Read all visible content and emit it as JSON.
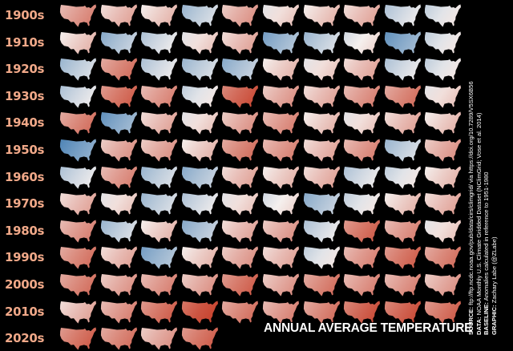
{
  "title": "ANNUAL AVERAGE TEMPERATURE",
  "colors": {
    "background": "#000000",
    "label": "#f0a888",
    "cold": "#3b78b0",
    "neutral": "#f5f0ee",
    "warm": "#c8442f"
  },
  "decades": [
    "1900s",
    "1910s",
    "1920s",
    "1930s",
    "1940s",
    "1950s",
    "1960s",
    "1970s",
    "1980s",
    "1990s",
    "2000s",
    "2010s",
    "2020s"
  ],
  "anomaly_scale": [
    -1,
    1
  ],
  "anomalies": [
    [
      0.5,
      0.3,
      0.2,
      -0.3,
      0.4,
      0.1,
      0.2,
      0.3,
      -0.2,
      -0.1
    ],
    [
      0.2,
      -0.4,
      -0.2,
      0.1,
      0.3,
      -0.5,
      -0.3,
      0.0,
      -0.6,
      -0.1
    ],
    [
      -0.3,
      0.6,
      -0.2,
      -0.3,
      -0.4,
      0.2,
      0.1,
      0.3,
      -0.2,
      -0.1
    ],
    [
      -0.2,
      0.7,
      0.5,
      -0.1,
      0.8,
      0.4,
      0.3,
      0.5,
      0.6,
      0.1
    ],
    [
      0.6,
      -0.6,
      0.3,
      0.1,
      0.4,
      0.5,
      0.2,
      0.1,
      0.3,
      0.2
    ],
    [
      -0.7,
      0.4,
      0.4,
      0.2,
      0.6,
      0.5,
      0.3,
      0.5,
      -0.3,
      0.4
    ],
    [
      -0.2,
      0.5,
      -0.3,
      -0.4,
      0.3,
      0.2,
      0.3,
      -0.2,
      -0.1,
      0.2
    ],
    [
      0.3,
      0.1,
      -0.3,
      -0.2,
      0.1,
      0.0,
      -0.4,
      -0.1,
      0.2,
      0.3
    ],
    [
      0.5,
      -0.3,
      0.2,
      -0.4,
      0.3,
      0.4,
      -0.2,
      0.7,
      0.5,
      0.1
    ],
    [
      0.6,
      0.3,
      -0.5,
      0.2,
      0.4,
      0.3,
      -0.1,
      0.5,
      0.7,
      0.6
    ],
    [
      0.6,
      0.4,
      0.5,
      0.4,
      0.7,
      0.4,
      0.6,
      0.5,
      0.5,
      0.4
    ],
    [
      0.3,
      0.5,
      0.7,
      0.9,
      0.6,
      0.5,
      0.6,
      0.8,
      0.8,
      0.7
    ],
    [
      0.7,
      0.6,
      0.4,
      0.7
    ]
  ],
  "credits": [
    {
      "key": "SOURCE:",
      "text": " ftp://ftp.ncdc.noaa.gov/pub/data/cirs/climgrid/ via https://doi.org/10.7289/V5SX6B56"
    },
    {
      "key": "DATA:",
      "text": " NOAA Monthly U.S. Climate Gridded Dataset (NClimGrid; Vose et al. 2014)"
    },
    {
      "key": "BASELINE:",
      "text": " Anomalies calculated in reference to 1951-1980"
    },
    {
      "key": "GRAPHIC:",
      "text": " Zachary Labe (@ZLabe)"
    }
  ]
}
